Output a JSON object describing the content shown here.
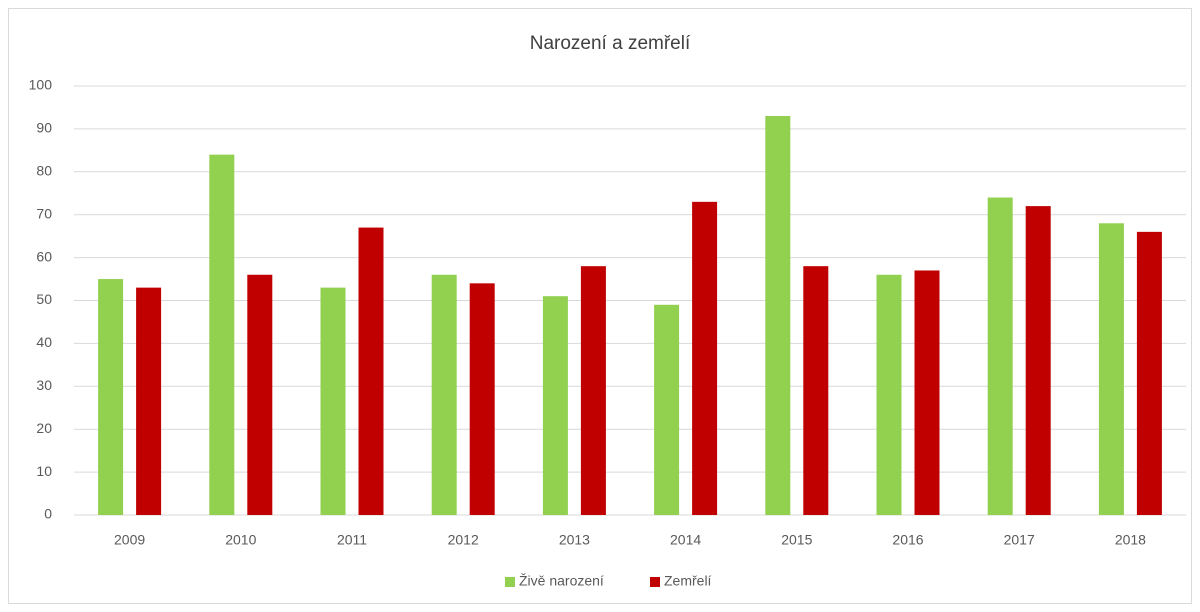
{
  "chart_data": {
    "type": "bar",
    "title": "Narození a zemřelí",
    "categories": [
      "2009",
      "2010",
      "2011",
      "2012",
      "2013",
      "2014",
      "2015",
      "2016",
      "2017",
      "2018"
    ],
    "series": [
      {
        "name": "Živě narození",
        "color": "#92d050",
        "values": [
          55,
          84,
          53,
          56,
          51,
          49,
          93,
          56,
          74,
          68
        ]
      },
      {
        "name": "Zemřelí",
        "color": "#c00000",
        "values": [
          53,
          56,
          67,
          54,
          58,
          73,
          58,
          57,
          72,
          66
        ]
      }
    ],
    "ylim": [
      0,
      100
    ],
    "yticks": [
      0,
      10,
      20,
      30,
      40,
      50,
      60,
      70,
      80,
      90,
      100
    ],
    "grid": true,
    "legend": "bottom"
  }
}
